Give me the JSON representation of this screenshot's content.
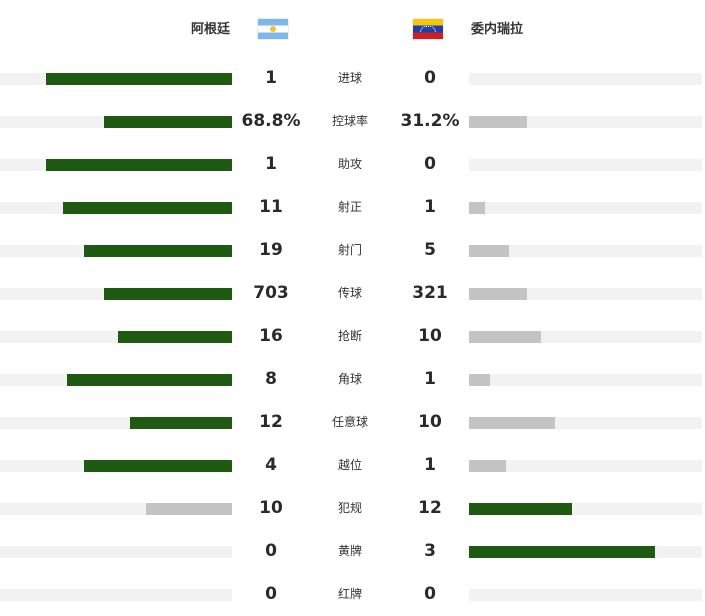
{
  "teams": {
    "home": {
      "name": "阿根廷",
      "flag_icon": "argentina-flag-icon"
    },
    "away": {
      "name": "委内瑞拉",
      "flag_icon": "venezuela-flag-icon"
    }
  },
  "colors": {
    "leader_bar": "#1f5a12",
    "trailing_bar": "#c4c4c4",
    "track": "#f2f2f2"
  },
  "stats": [
    {
      "label": "进球",
      "home": "1",
      "away": "0",
      "home_share": 0.8,
      "away_share": 0.0,
      "leader": "home"
    },
    {
      "label": "控球率",
      "home": "68.8%",
      "away": "31.2%",
      "home_share": 0.55,
      "away_share": 0.25,
      "leader": "home"
    },
    {
      "label": "助攻",
      "home": "1",
      "away": "0",
      "home_share": 0.8,
      "away_share": 0.0,
      "leader": "home"
    },
    {
      "label": "射正",
      "home": "11",
      "away": "1",
      "home_share": 0.73,
      "away_share": 0.07,
      "leader": "home"
    },
    {
      "label": "射门",
      "home": "19",
      "away": "5",
      "home_share": 0.64,
      "away_share": 0.17,
      "leader": "home"
    },
    {
      "label": "传球",
      "home": "703",
      "away": "321",
      "home_share": 0.55,
      "away_share": 0.25,
      "leader": "home"
    },
    {
      "label": "抢断",
      "home": "16",
      "away": "10",
      "home_share": 0.49,
      "away_share": 0.31,
      "leader": "home"
    },
    {
      "label": "角球",
      "home": "8",
      "away": "1",
      "home_share": 0.71,
      "away_share": 0.09,
      "leader": "home"
    },
    {
      "label": "任意球",
      "home": "12",
      "away": "10",
      "home_share": 0.44,
      "away_share": 0.37,
      "leader": "home"
    },
    {
      "label": "越位",
      "home": "4",
      "away": "1",
      "home_share": 0.64,
      "away_share": 0.16,
      "leader": "home"
    },
    {
      "label": "犯规",
      "home": "10",
      "away": "12",
      "home_share": 0.37,
      "away_share": 0.44,
      "leader": "away"
    },
    {
      "label": "黄牌",
      "home": "0",
      "away": "3",
      "home_share": 0.0,
      "away_share": 0.8,
      "leader": "away"
    },
    {
      "label": "红牌",
      "home": "0",
      "away": "0",
      "home_share": 0.0,
      "away_share": 0.0,
      "leader": "none"
    }
  ]
}
